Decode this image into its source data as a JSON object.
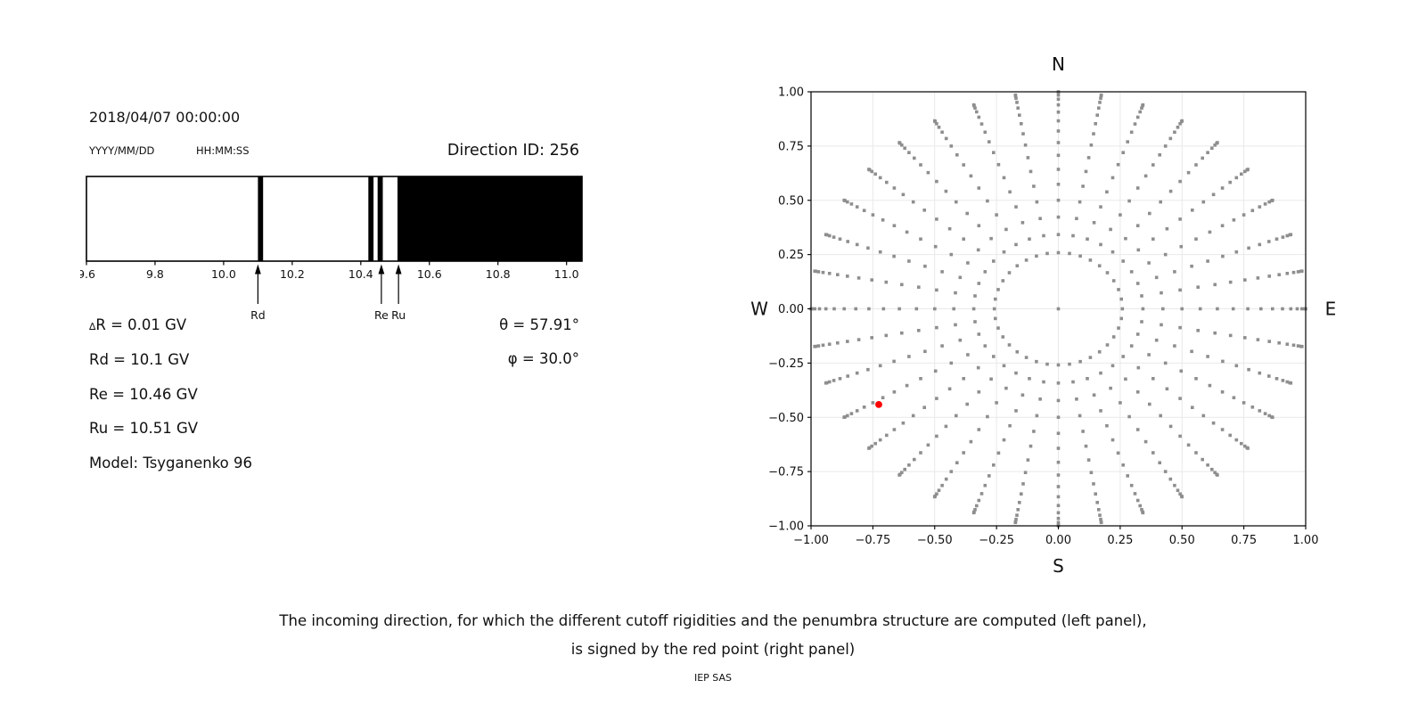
{
  "header": {
    "datetime": "2018/04/07 00:00:00",
    "date_format_label": "YYYY/MM/DD",
    "time_format_label": "HH:MM:SS",
    "direction_id": "Direction ID: 256"
  },
  "info": {
    "delta_symbol": "∆",
    "delta_rest": "R = 0.01 GV",
    "rd": "Rd = 10.1 GV",
    "re": "Re = 10.46 GV",
    "ru": "Ru = 10.51 GV",
    "model": "Model: Tsyganenko 96",
    "theta": "θ = 57.91°",
    "phi": "φ = 30.0°"
  },
  "caption": {
    "line1": "The incoming direction, for which the different cutoff rigidities and the penumbra structure are computed (left panel),",
    "line2": "is signed by the red point (right panel)",
    "credit": "IEP SAS"
  },
  "chart_data": [
    {
      "type": "penumbra-band-spectrum",
      "description": "Penumbra structure: allowed (white) and forbidden (black) rigidity bands",
      "xlim": [
        9.6,
        11.045
      ],
      "x_ticks": [
        9.6,
        9.8,
        10.0,
        10.2,
        10.4,
        10.6,
        10.8,
        11.0
      ],
      "x_tick_labels": [
        "9.6",
        "9.8",
        "10.0",
        "10.2",
        "10.4",
        "10.6",
        "10.8",
        "11.0"
      ],
      "black_bands_gv": [
        [
          10.1,
          10.115
        ],
        [
          10.422,
          10.437
        ],
        [
          10.449,
          10.464
        ],
        [
          10.507,
          11.045
        ]
      ],
      "arrows": [
        {
          "label": "Rd",
          "gv": 10.1
        },
        {
          "label": "Re",
          "gv": 10.46
        },
        {
          "label": "Ru",
          "gv": 10.51
        }
      ],
      "band_color": "#000000",
      "frame_color": "#000000"
    },
    {
      "type": "scatter",
      "description": "Grid of incoming directions; radius = sin(zenith angle), 36 azimuthal spokes",
      "title_top": "N",
      "label_bottom": "S",
      "label_left": "W",
      "label_right": "E",
      "xlim": [
        -1,
        1
      ],
      "ylim": [
        -1,
        1
      ],
      "x_tick_labels": [
        "−1.00",
        "−0.75",
        "−0.50",
        "−0.25",
        "0.00",
        "0.25",
        "0.50",
        "0.75",
        "1.00"
      ],
      "y_tick_labels": [
        "−1.00",
        "−0.75",
        "−0.50",
        "−0.25",
        "0.00",
        "0.25",
        "0.50",
        "0.75",
        "1.00"
      ],
      "tick_values": [
        -1,
        -0.75,
        -0.5,
        -0.25,
        0,
        0.25,
        0.5,
        0.75,
        1
      ],
      "grid": true,
      "grid_color": "#e9e9e9",
      "dot_color": "#8e8e8e",
      "dot_size_px": 3.6,
      "spokes": {
        "azimuth_deg_step": 10,
        "azimuth_count": 36,
        "theta_deg_start": 15,
        "theta_deg_end": 90,
        "theta_deg_step": 5,
        "radius_formula": "sin(theta)"
      },
      "center_point": {
        "x": 0,
        "y": 0
      },
      "selected_point": {
        "x": -0.726,
        "y": -0.441,
        "theta_deg": 57.91,
        "phi_deg": 30.0,
        "color": "#ff0000",
        "radius_px": 3.9
      }
    }
  ]
}
